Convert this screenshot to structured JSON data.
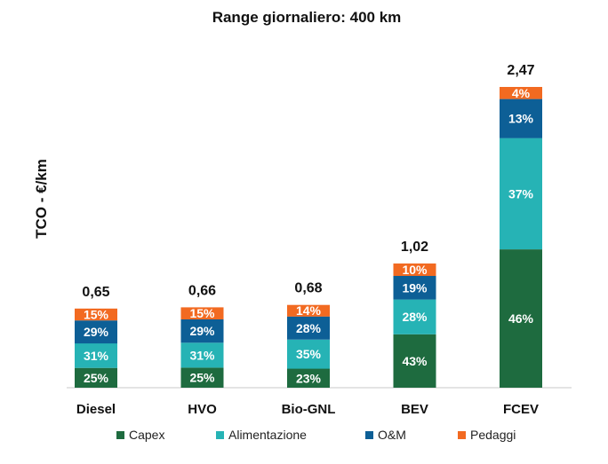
{
  "chart_data": {
    "type": "bar",
    "stacked": true,
    "title": "Range giornaliero: 400 km",
    "xlabel": "",
    "ylabel": "TCO - €/km",
    "ylim": [
      0,
      2.6
    ],
    "grid": false,
    "legend_position": "bottom",
    "categories": [
      "Diesel",
      "HVO",
      "Bio-GNL",
      "BEV",
      "FCEV"
    ],
    "totals": [
      0.65,
      0.66,
      0.68,
      1.02,
      2.47
    ],
    "total_labels": [
      "0,65",
      "0,66",
      "0,68",
      "1,02",
      "2,47"
    ],
    "series": [
      {
        "name": "Capex",
        "color": "#1e6b3f",
        "shares": [
          0.25,
          0.25,
          0.23,
          0.43,
          0.46
        ],
        "labels": [
          "25%",
          "25%",
          "23%",
          "43%",
          "46%"
        ]
      },
      {
        "name": "Alimentazione",
        "color": "#26b3b5",
        "shares": [
          0.31,
          0.31,
          0.35,
          0.28,
          0.37
        ],
        "labels": [
          "31%",
          "31%",
          "35%",
          "28%",
          "37%"
        ]
      },
      {
        "name": "O&M",
        "color": "#0d5f96",
        "shares": [
          0.29,
          0.29,
          0.28,
          0.19,
          0.13
        ],
        "labels": [
          "29%",
          "29%",
          "28%",
          "19%",
          "13%"
        ]
      },
      {
        "name": "Pedaggi",
        "color": "#f26a21",
        "shares": [
          0.15,
          0.15,
          0.14,
          0.1,
          0.04
        ],
        "labels": [
          "15%",
          "15%",
          "14%",
          "10%",
          "4%"
        ]
      }
    ]
  }
}
